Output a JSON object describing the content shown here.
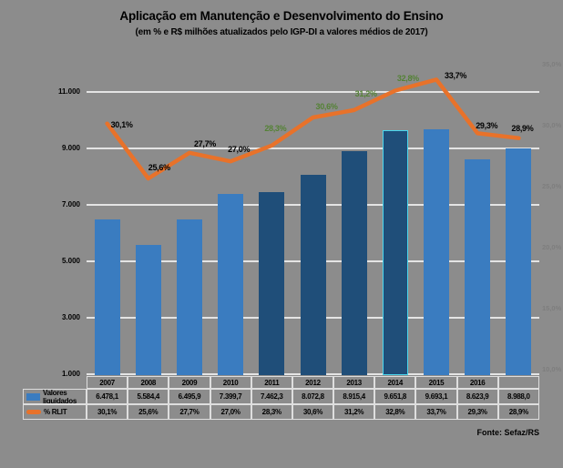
{
  "title": "Aplicação em Manutenção e Desenvolvimento do Ensino",
  "subtitle": "(em % e R$ milhões atualizados pelo IGP-DI a valores médios de 2017)",
  "source": "Fonte: Sefaz/RS",
  "colors": {
    "background": "#8c8c8c",
    "bar_normal": "#3a7cc0",
    "bar_highlight": "#1f4e79",
    "line": "#e8722a",
    "label_normal": "#000000",
    "label_highlight": "#548235",
    "gridline": "#e4e4e4"
  },
  "chart_data": {
    "type": "bar+line",
    "title": "Aplicação em Manutenção e Desenvolvimento do Ensino",
    "subtitle": "(em % e R$ milhões atualizados pelo IGP-DI a valores médios de 2017)",
    "categories": [
      "2007",
      "2008",
      "2009",
      "2010",
      "2011",
      "2012",
      "2013",
      "2014",
      "2015",
      "2016",
      ""
    ],
    "series": [
      {
        "name": "Valores liquidados",
        "type": "bar",
        "axis": "left",
        "values": [
          6478.1,
          5584.4,
          6495.9,
          7399.7,
          7462.3,
          8072.8,
          8915.4,
          9651.8,
          9693.1,
          8623.9,
          8988.0
        ],
        "display": [
          "6.478,1",
          "5.584,4",
          "6.495,9",
          "7.399,7",
          "7.462,3",
          "8.072,8",
          "8.915,4",
          "9.651,8",
          "9.693,1",
          "8.623,9",
          "8.988,0"
        ]
      },
      {
        "name": "% RLIT",
        "type": "line",
        "axis": "right",
        "values": [
          30.1,
          25.6,
          27.7,
          27.0,
          28.3,
          30.6,
          31.2,
          32.8,
          33.7,
          29.3,
          28.9
        ],
        "display": [
          "30,1%",
          "25,6%",
          "27,7%",
          "27,0%",
          "28,3%",
          "30,6%",
          "31,2%",
          "32,8%",
          "33,7%",
          "29,3%",
          "28,9%"
        ]
      }
    ],
    "highlight_indices": [
      4,
      5,
      6,
      7
    ],
    "left_axis": {
      "min": 1000,
      "max": 11000,
      "step": 2000,
      "tick_values": [
        1000,
        3000,
        5000,
        7000,
        9000,
        11000
      ],
      "tick_labels": [
        "1.000",
        "3.000",
        "5.000",
        "7.000",
        "9.000",
        "11.000"
      ]
    },
    "right_axis": {
      "min": 10,
      "max": 35,
      "step": 5,
      "tick_values": [
        10,
        15,
        20,
        25,
        30,
        35
      ],
      "tick_labels": [
        "10,0%",
        "15,0%",
        "20,0%",
        "25,0%",
        "30,0%",
        "35,0%"
      ]
    },
    "grid": true,
    "legend_position": "data-table-left"
  }
}
